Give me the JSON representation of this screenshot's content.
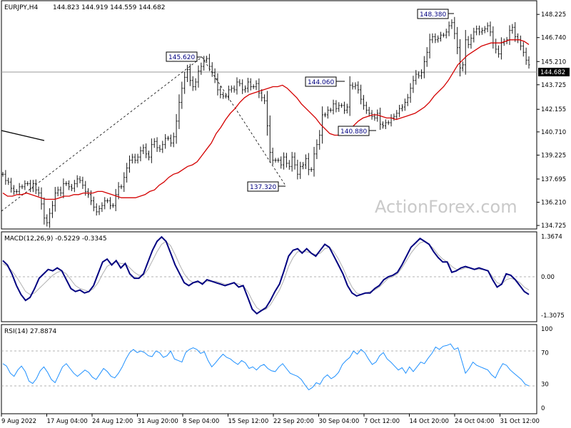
{
  "chart_data": [
    {
      "type": "candlestick",
      "title": "EURJPY,H4",
      "ohlc_label": "144.823 144.919 144.559 144.682",
      "last_price": "144.682",
      "watermark": "ActionForex.com",
      "colors": {
        "bars": "#1a1a1a",
        "ma": "#d40000",
        "annot_text": "#000080",
        "grid_dash": "#9a9a9a"
      },
      "ylim": [
        134.5,
        149.1
      ],
      "y_ticks": [
        "148.225",
        "146.740",
        "145.210",
        "143.725",
        "142.155",
        "140.710",
        "139.225",
        "137.695",
        "136.210",
        "134.725"
      ],
      "x_ticks": [
        "9 Aug 2022",
        "17 Aug 04:00",
        "24 Aug 12:00",
        "31 Aug 20:00",
        "8 Sep 04:00",
        "15 Sep 12:00",
        "22 Sep 20:00",
        "30 Sep 04:00",
        "7 Oct 12:00",
        "14 Oct 20:00",
        "24 Oct 04:00",
        "31 Oct 12:00"
      ],
      "swing_labels": [
        "145.620",
        "137.320",
        "144.060",
        "140.880",
        "148.380"
      ],
      "series": [
        {
          "values": [
            138.0,
            137.6,
            137.5,
            137.1,
            136.9,
            136.9,
            137.2,
            137.2,
            137.4,
            137.4,
            137.1,
            137.4,
            137.0,
            136.8,
            136.1,
            135.2,
            134.9,
            135.5,
            136.0,
            136.8,
            137.0,
            136.8,
            137.4,
            137.4,
            137.2,
            137.1,
            137.4,
            137.7,
            137.6,
            137.3,
            136.9,
            136.7,
            136.3,
            135.9,
            135.6,
            135.8,
            136.0,
            136.3,
            136.3,
            136.0,
            136.0,
            136.7,
            137.2,
            137.2,
            137.8,
            138.4,
            138.9,
            139.1,
            138.9,
            139.1,
            139.5,
            139.7,
            139.3,
            139.1,
            139.9,
            140.1,
            139.7,
            139.6,
            139.9,
            140.3,
            140.3,
            140.0,
            140.4,
            141.4,
            142.6,
            143.5,
            144.2,
            144.7,
            144.0,
            143.6,
            143.9,
            144.6,
            144.9,
            145.3,
            145.4,
            144.9,
            144.5,
            144.1,
            143.4,
            143.1,
            143.0,
            143.0,
            143.4,
            143.5,
            143.4,
            143.9,
            143.8,
            143.4,
            143.5,
            143.9,
            143.6,
            143.6,
            143.8,
            143.2,
            142.9,
            142.7,
            141.1,
            139.4,
            138.9,
            138.9,
            138.9,
            138.6,
            139.1,
            138.7,
            138.5,
            139.1,
            138.6,
            138.0,
            138.5,
            138.6,
            139.0,
            138.3,
            138.3,
            139.3,
            139.9,
            140.5,
            141.8,
            141.8,
            142.1,
            142.1,
            142.5,
            142.2,
            142.4,
            142.4,
            142.1,
            142.3,
            143.7,
            143.6,
            143.7,
            143.4,
            142.8,
            142.4,
            142.1,
            141.9,
            141.7,
            141.6,
            141.9,
            141.2,
            141.1,
            141.3,
            141.3,
            141.6,
            141.7,
            141.9,
            142.2,
            142.3,
            142.6,
            142.9,
            143.5,
            144.0,
            144.4,
            144.3,
            144.5,
            145.2,
            145.8,
            146.6,
            146.8,
            146.6,
            146.7,
            146.9,
            146.9,
            147.1,
            147.5,
            147.7,
            147.0,
            146.1,
            144.8,
            145.0,
            146.6,
            146.3,
            146.7,
            147.1,
            147.3,
            147.1,
            147.2,
            147.3,
            147.5,
            147.1,
            146.4,
            146.0,
            145.7,
            146.4,
            146.5,
            146.6,
            147.2,
            147.4,
            146.8,
            146.6,
            146.2,
            145.8,
            145.3,
            145.0
          ],
          "name": ""
        },
        {
          "values": [
            136.8,
            136.6,
            136.6,
            136.7,
            136.7,
            136.8,
            136.7,
            136.6,
            136.5,
            136.4,
            136.4,
            136.4,
            136.5,
            136.6,
            136.6,
            136.7,
            136.7,
            136.8,
            136.8,
            136.8,
            136.9,
            136.9,
            136.8,
            136.7,
            136.6,
            136.5,
            136.5,
            136.5,
            136.5,
            136.6,
            136.7,
            136.9,
            137.0,
            137.3,
            137.5,
            137.8,
            138.0,
            138.1,
            138.3,
            138.5,
            138.6,
            138.8,
            139.2,
            139.6,
            140.0,
            140.6,
            141.0,
            141.5,
            141.9,
            142.2,
            142.6,
            142.9,
            143.1,
            143.2,
            143.3,
            143.4,
            143.5,
            143.6,
            143.6,
            143.7,
            143.5,
            143.2,
            142.9,
            142.5,
            142.2,
            141.9,
            141.6,
            141.2,
            140.9,
            140.6,
            140.5,
            140.5,
            140.6,
            140.8,
            141.1,
            141.4,
            141.6,
            141.7,
            141.8,
            141.8,
            141.7,
            141.6,
            141.6,
            141.5,
            141.6,
            141.7,
            141.8,
            141.9,
            142.1,
            142.3,
            142.6,
            143.0,
            143.3,
            143.6,
            144.0,
            144.5,
            145.0,
            145.3,
            145.6,
            145.8,
            146.0,
            146.2,
            146.3,
            146.4,
            146.4,
            146.4,
            146.5,
            146.6,
            146.6,
            146.6,
            146.5,
            146.3
          ],
          "name": ""
        }
      ]
    },
    {
      "type": "line",
      "title": "MACD(12,26,9) -0.5229 -0.3345",
      "ylim": [
        -1.5,
        1.5
      ],
      "y_ticks": [
        "1.3674",
        "0.00",
        "-1.3075"
      ],
      "series": [
        {
          "values": [
            0.55,
            0.4,
            0.1,
            -0.3,
            -0.6,
            -0.8,
            -0.7,
            -0.4,
            -0.05,
            0.1,
            0.25,
            0.2,
            0.3,
            0.2,
            -0.1,
            -0.4,
            -0.5,
            -0.45,
            -0.55,
            -0.5,
            -0.3,
            0.1,
            0.5,
            0.6,
            0.4,
            0.55,
            0.3,
            0.45,
            0.1,
            -0.05,
            -0.05,
            0.1,
            0.5,
            0.9,
            1.2,
            1.35,
            1.2,
            0.8,
            0.4,
            0.1,
            -0.2,
            -0.3,
            -0.2,
            -0.15,
            -0.25,
            -0.1,
            -0.15,
            -0.2,
            -0.25,
            -0.3,
            -0.25,
            -0.2,
            -0.35,
            -0.3,
            -0.7,
            -1.1,
            -1.25,
            -1.15,
            -1.05,
            -0.8,
            -0.5,
            -0.25,
            0.2,
            0.7,
            0.9,
            0.95,
            0.8,
            0.95,
            0.8,
            0.7,
            0.9,
            1.1,
            1.0,
            0.7,
            0.4,
            0.1,
            -0.3,
            -0.55,
            -0.65,
            -0.6,
            -0.55,
            -0.55,
            -0.4,
            -0.3,
            -0.1,
            0.0,
            0.05,
            0.15,
            0.4,
            0.7,
            1.0,
            1.15,
            1.3,
            1.2,
            1.1,
            0.85,
            0.65,
            0.5,
            0.5,
            0.15,
            0.2,
            0.3,
            0.35,
            0.3,
            0.25,
            0.3,
            0.25,
            0.2,
            -0.1,
            -0.35,
            -0.25,
            0.1,
            0.05,
            -0.1,
            -0.3,
            -0.5,
            -0.6
          ],
          "name": ""
        },
        {
          "values": [
            0.45,
            0.35,
            0.2,
            0.0,
            -0.25,
            -0.5,
            -0.6,
            -0.55,
            -0.4,
            -0.25,
            -0.1,
            0.05,
            0.15,
            0.2,
            0.1,
            -0.1,
            -0.3,
            -0.4,
            -0.45,
            -0.5,
            -0.4,
            -0.2,
            0.1,
            0.35,
            0.45,
            0.5,
            0.45,
            0.45,
            0.3,
            0.15,
            0.05,
            0.05,
            0.25,
            0.55,
            0.85,
            1.1,
            1.2,
            1.05,
            0.75,
            0.4,
            0.1,
            -0.1,
            -0.2,
            -0.2,
            -0.2,
            -0.15,
            -0.15,
            -0.15,
            -0.2,
            -0.25,
            -0.25,
            -0.2,
            -0.25,
            -0.3,
            -0.5,
            -0.8,
            -1.05,
            -1.15,
            -1.1,
            -0.95,
            -0.7,
            -0.45,
            -0.1,
            0.35,
            0.65,
            0.85,
            0.85,
            0.85,
            0.8,
            0.75,
            0.8,
            0.95,
            1.0,
            0.85,
            0.6,
            0.3,
            -0.05,
            -0.35,
            -0.55,
            -0.6,
            -0.55,
            -0.5,
            -0.45,
            -0.35,
            -0.2,
            -0.05,
            0.0,
            0.1,
            0.3,
            0.55,
            0.8,
            1.0,
            1.15,
            1.2,
            1.1,
            0.95,
            0.75,
            0.6,
            0.5,
            0.35,
            0.25,
            0.25,
            0.3,
            0.3,
            0.25,
            0.25,
            0.25,
            0.2,
            0.0,
            -0.2,
            -0.25,
            -0.1,
            -0.05,
            -0.1,
            -0.2,
            -0.35,
            -0.45
          ],
          "name": ""
        }
      ]
    },
    {
      "type": "line",
      "title": "RSI(14) 27.8874",
      "ylim": [
        0,
        100
      ],
      "y_ticks": [
        "100",
        "70",
        "30",
        "0"
      ],
      "series": [
        {
          "values": [
            56,
            53,
            44,
            40,
            48,
            53,
            46,
            34,
            31,
            37,
            47,
            52,
            45,
            36,
            32,
            42,
            52,
            56,
            50,
            44,
            40,
            44,
            48,
            45,
            39,
            36,
            43,
            50,
            46,
            40,
            38,
            44,
            52,
            62,
            70,
            74,
            70,
            72,
            70,
            66,
            65,
            72,
            70,
            64,
            66,
            72,
            62,
            60,
            58,
            70,
            74,
            76,
            74,
            69,
            71,
            60,
            52,
            57,
            63,
            68,
            64,
            62,
            58,
            55,
            60,
            57,
            50,
            52,
            48,
            53,
            55,
            50,
            47,
            46,
            52,
            56,
            50,
            44,
            42,
            40,
            36,
            29,
            23,
            26,
            32,
            30,
            38,
            42,
            37,
            40,
            45,
            55,
            60,
            64,
            72,
            68,
            74,
            70,
            62,
            55,
            58,
            66,
            70,
            62,
            58,
            53,
            48,
            51,
            44,
            52,
            46,
            52,
            58,
            56,
            63,
            69,
            77,
            74,
            78,
            79,
            81,
            74,
            76,
            60,
            44,
            50,
            58,
            54,
            52,
            50,
            48,
            42,
            38,
            48,
            56,
            54,
            48,
            44,
            40,
            36,
            30,
            28
          ],
          "name": ""
        }
      ]
    }
  ]
}
